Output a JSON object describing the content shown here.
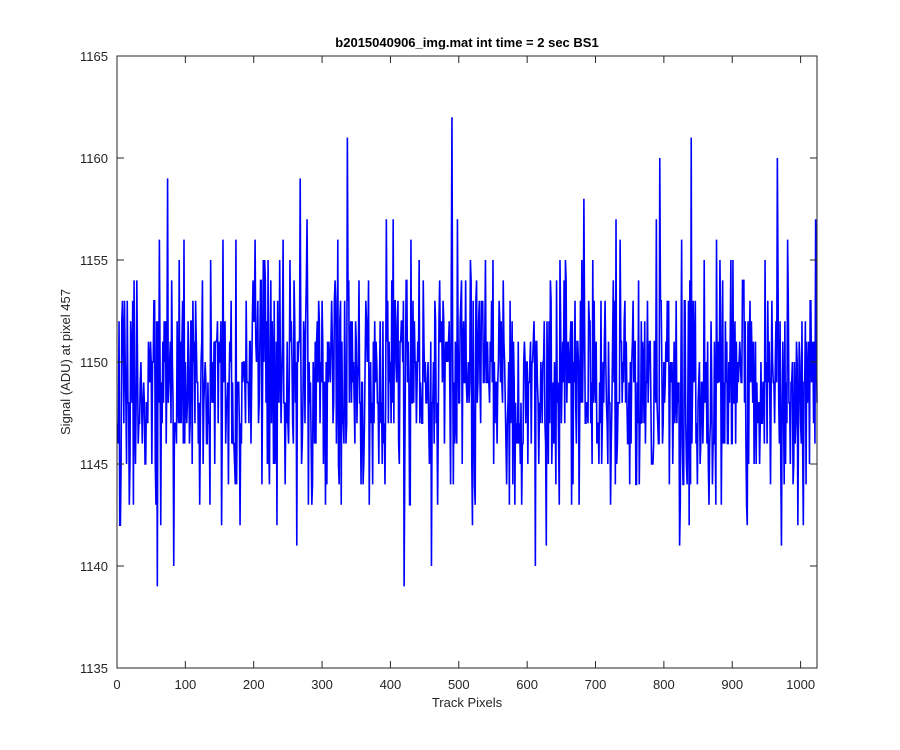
{
  "chart_data": {
    "type": "line",
    "title": "b2015040906_img.mat int time = 2 sec   BS1",
    "xlabel": "Track Pixels",
    "ylabel": "Signal (ADU) at pixel 457",
    "xlim": [
      0,
      1024
    ],
    "ylim": [
      1135,
      1165
    ],
    "xticks": [
      0,
      100,
      200,
      300,
      400,
      500,
      600,
      700,
      800,
      900,
      1000
    ],
    "yticks": [
      1135,
      1140,
      1145,
      1150,
      1155,
      1160,
      1165
    ],
    "grid": false,
    "legend": "none",
    "series": [
      {
        "color": "#0000ff",
        "x_start": 1,
        "x_step": 1,
        "n_points": 1024,
        "mean": 1149,
        "spread": 3,
        "y_min": 1139,
        "y_max": 1162,
        "notable_points": [
          {
            "x": 4,
            "y": 1142
          },
          {
            "x": 29,
            "y": 1154
          },
          {
            "x": 59,
            "y": 1139
          },
          {
            "x": 74,
            "y": 1159
          },
          {
            "x": 98,
            "y": 1156
          },
          {
            "x": 263,
            "y": 1141
          },
          {
            "x": 268,
            "y": 1159
          },
          {
            "x": 337,
            "y": 1161
          },
          {
            "x": 420,
            "y": 1139
          },
          {
            "x": 490,
            "y": 1162
          },
          {
            "x": 612,
            "y": 1140
          },
          {
            "x": 794,
            "y": 1160
          },
          {
            "x": 840,
            "y": 1161
          },
          {
            "x": 966,
            "y": 1160
          },
          {
            "x": 1022,
            "y": 1157
          }
        ]
      }
    ]
  }
}
